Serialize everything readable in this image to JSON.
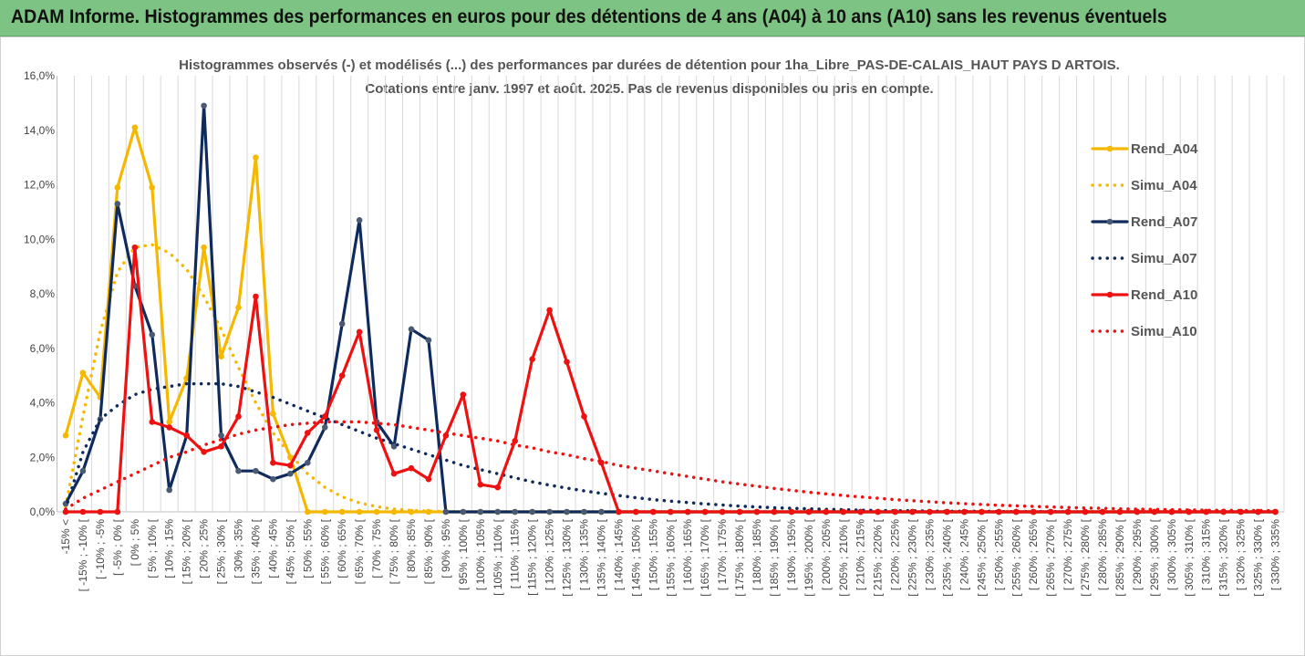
{
  "header": {
    "title": "ADAM Informe. Histogrammes des performances en euros pour des détentions de 4 ans (A04) à 10 ans (A10) sans les revenus éventuels"
  },
  "chart_data": {
    "type": "line",
    "title": "Histogrammes observés (-) et modélisés (...) des performances par durées de détention pour 1ha_Libre_PAS-DE-CALAIS_HAUT PAYS D ARTOIS.",
    "subtitle": "Cotations entre janv. 1997 et août. 2025. Pas de revenus disponibles ou pris en compte.",
    "xlabel": "",
    "ylabel": "",
    "ylim": [
      0,
      16
    ],
    "yticks": [
      "0,0%",
      "2,0%",
      "4,0%",
      "6,0%",
      "8,0%",
      "10,0%",
      "12,0%",
      "14,0%",
      "16,0%"
    ],
    "grid": "vertical",
    "legend_position": "right",
    "categories": [
      "-15% <",
      "[ -15% ; -10% [",
      "[ -10% ; -5%",
      "[ -5% ; 0% [",
      "[ 0% ; 5%",
      "[ 5% ; 10% [",
      "[ 10% ; 15%",
      "[ 15% ; 20% [",
      "[ 20% ; 25%",
      "[ 25% ; 30% [",
      "[ 30% ; 35%",
      "[ 35% ; 40% [",
      "[ 40% ; 45%",
      "[ 45% ; 50% [",
      "[ 50% ; 55%",
      "[ 55% ; 60% [",
      "[ 60% ; 65%",
      "[ 65% ; 70% [",
      "[ 70% ; 75%",
      "[ 75% ; 80% [",
      "[ 80% ; 85%",
      "[ 85% ; 90% [",
      "[ 90% ; 95%",
      "[ 95% ; 100% [",
      "[ 100% ; 105%",
      "[ 105% ; 110% [",
      "[ 110% ; 115%",
      "[ 115% ; 120% [",
      "[ 120% ; 125%",
      "[ 125% ; 130% [",
      "[ 130% ; 135%",
      "[ 135% ; 140% [",
      "[ 140% ; 145%",
      "[ 145% ; 150% [",
      "[ 150% ; 155%",
      "[ 155% ; 160% [",
      "[ 160% ; 165%",
      "[ 165% ; 170% [",
      "[ 170% ; 175%",
      "[ 175% ; 180% [",
      "[ 180% ; 185%",
      "[ 185% ; 190% [",
      "[ 190% ; 195%",
      "[ 195% ; 200% [",
      "[ 200% ; 205%",
      "[ 205% ; 210% [",
      "[ 210% ; 215%",
      "[ 215% ; 220% [",
      "[ 220% ; 225%",
      "[ 225% ; 230% [",
      "[ 230% ; 235%",
      "[ 235% ; 240% [",
      "[ 240% ; 245%",
      "[ 245% ; 250% [",
      "[ 250% ; 255%",
      "[ 255% ; 260% [",
      "[ 260% ; 265%",
      "[ 265% ; 270% [",
      "[ 270% ; 275%",
      "[ 275% ; 280% [",
      "[ 280% ; 285%",
      "[ 285% ; 290% [",
      "[ 290% ; 295%",
      "[ 295% ; 300% [",
      "[ 300% ; 305%",
      "[ 305% ; 310% [",
      "[ 310% ; 315%",
      "[ 315% ; 320% [",
      "[ 320% ; 325%",
      "[ 325% ; 330% [",
      "[ 330% ; 335%"
    ],
    "series": [
      {
        "name": "Rend_A04",
        "color": "#f5b800",
        "style": "solid",
        "markers": true,
        "values": [
          2.8,
          5.1,
          4.2,
          11.9,
          14.1,
          11.9,
          3.3,
          4.9,
          9.7,
          5.7,
          7.5,
          13.0,
          3.6,
          2.0,
          0,
          0,
          0,
          0,
          0,
          0,
          0,
          0,
          0,
          0,
          0,
          0,
          0,
          0,
          0,
          0,
          0,
          0,
          0,
          0,
          0,
          0,
          0,
          0,
          0,
          0,
          0,
          0,
          0,
          0,
          0,
          0,
          0,
          0,
          0,
          0,
          0,
          0,
          0,
          0,
          0,
          0,
          0,
          0,
          0,
          0,
          0,
          0,
          0,
          0,
          0,
          0,
          0,
          0,
          0,
          0,
          0
        ]
      },
      {
        "name": "Simu_A04",
        "color": "#f5b800",
        "style": "dotted",
        "markers": false,
        "values": [
          0.2,
          3.5,
          6.6,
          8.8,
          9.7,
          9.8,
          9.5,
          8.9,
          7.9,
          6.7,
          5.3,
          4.0,
          2.9,
          2.1,
          1.4,
          0.9,
          0.55,
          0.33,
          0.19,
          0.1,
          0.05,
          0.03,
          0.01,
          0,
          0,
          0,
          0,
          0,
          0,
          0,
          0,
          0,
          0,
          0,
          0,
          0,
          0,
          0,
          0,
          0,
          0,
          0,
          0,
          0,
          0,
          0,
          0,
          0,
          0,
          0,
          0,
          0,
          0,
          0,
          0,
          0,
          0,
          0,
          0,
          0,
          0,
          0,
          0,
          0,
          0,
          0,
          0,
          0,
          0,
          0,
          0
        ]
      },
      {
        "name": "Rend_A07",
        "color": "#0f2a5c",
        "style": "solid",
        "markers": true,
        "values": [
          0.3,
          1.5,
          3.4,
          11.3,
          8.3,
          6.5,
          0.8,
          2.8,
          14.9,
          2.8,
          1.5,
          1.5,
          1.2,
          1.4,
          1.8,
          3.1,
          6.9,
          10.7,
          3.3,
          2.4,
          6.7,
          6.3,
          0,
          0,
          0,
          0,
          0,
          0,
          0,
          0,
          0,
          0,
          0,
          0,
          0,
          0,
          0,
          0,
          0,
          0,
          0,
          0,
          0,
          0,
          0,
          0,
          0,
          0,
          0,
          0,
          0,
          0,
          0,
          0,
          0,
          0,
          0,
          0,
          0,
          0,
          0,
          0,
          0,
          0,
          0,
          0,
          0,
          0,
          0,
          0,
          0
        ]
      },
      {
        "name": "Simu_A07",
        "color": "#0f2a5c",
        "style": "dotted",
        "markers": false,
        "values": [
          0.1,
          2.2,
          3.4,
          3.9,
          4.3,
          4.5,
          4.6,
          4.7,
          4.7,
          4.7,
          4.6,
          4.4,
          4.2,
          3.95,
          3.7,
          3.45,
          3.2,
          2.95,
          2.7,
          2.5,
          2.3,
          2.1,
          1.9,
          1.7,
          1.55,
          1.4,
          1.25,
          1.1,
          0.98,
          0.87,
          0.77,
          0.68,
          0.6,
          0.52,
          0.45,
          0.39,
          0.34,
          0.29,
          0.25,
          0.21,
          0.18,
          0.15,
          0.13,
          0.11,
          0.09,
          0.08,
          0.06,
          0.05,
          0.04,
          0.04,
          0.03,
          0.02,
          0.02,
          0.02,
          0.01,
          0.01,
          0.01,
          0.01,
          0,
          0,
          0,
          0,
          0,
          0,
          0,
          0,
          0,
          0,
          0,
          0,
          0
        ]
      },
      {
        "name": "Rend_A10",
        "color": "#ee1111",
        "style": "solid",
        "markers": true,
        "values": [
          0,
          0,
          0,
          0,
          9.7,
          3.3,
          3.1,
          2.8,
          2.2,
          2.4,
          3.5,
          7.9,
          1.8,
          1.7,
          2.9,
          3.5,
          5.0,
          6.6,
          3.0,
          1.4,
          1.6,
          1.2,
          2.8,
          4.3,
          1.0,
          0.9,
          2.6,
          5.6,
          7.4,
          5.5,
          3.5,
          1.8,
          0,
          0,
          0,
          0,
          0,
          0,
          0,
          0,
          0,
          0,
          0,
          0,
          0,
          0,
          0,
          0,
          0,
          0,
          0,
          0,
          0,
          0,
          0,
          0,
          0,
          0,
          0,
          0,
          0,
          0,
          0,
          0,
          0,
          0,
          0,
          0,
          0,
          0,
          0
        ]
      },
      {
        "name": "Simu_A10",
        "color": "#ee1111",
        "style": "dotted",
        "markers": false,
        "values": [
          0.1,
          0.5,
          0.8,
          1.1,
          1.4,
          1.7,
          2.0,
          2.2,
          2.45,
          2.65,
          2.85,
          3.0,
          3.1,
          3.2,
          3.25,
          3.3,
          3.3,
          3.3,
          3.25,
          3.2,
          3.1,
          3.0,
          2.9,
          2.8,
          2.7,
          2.6,
          2.45,
          2.35,
          2.2,
          2.1,
          1.95,
          1.85,
          1.7,
          1.6,
          1.5,
          1.4,
          1.3,
          1.2,
          1.1,
          1.02,
          0.94,
          0.86,
          0.79,
          0.72,
          0.66,
          0.6,
          0.55,
          0.5,
          0.45,
          0.41,
          0.37,
          0.33,
          0.3,
          0.27,
          0.24,
          0.22,
          0.2,
          0.18,
          0.16,
          0.14,
          0.13,
          0.11,
          0.1,
          0.09,
          0.08,
          0.07,
          0.06,
          0.06,
          0.05,
          0.05,
          0.04
        ]
      }
    ]
  }
}
